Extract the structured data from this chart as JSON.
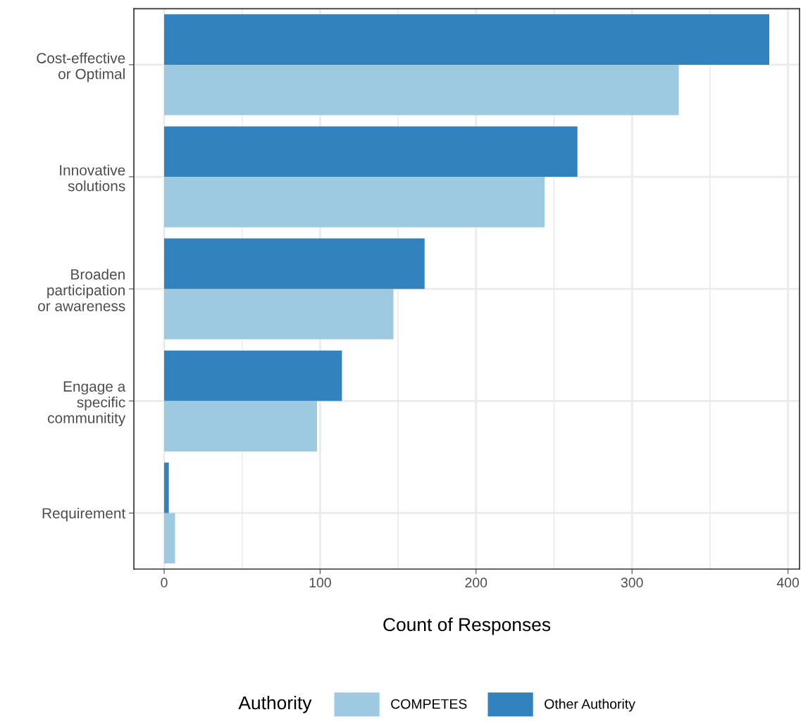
{
  "chart_data": {
    "type": "bar",
    "orientation": "horizontal",
    "xlabel": "Count of Responses",
    "legend_title": "Authority",
    "categories": [
      "Cost-effective\nor Optimal",
      "Innovative\nsolutions",
      "Broaden\nparticipation\nor awareness",
      "Engage a\nspecific\ncommunitity",
      "Requirement"
    ],
    "series": [
      {
        "name": "COMPETES",
        "color": "#9ecae1",
        "values": [
          330,
          244,
          147,
          98,
          7
        ]
      },
      {
        "name": "Other Authority",
        "color": "#3182bd",
        "values": [
          388,
          265,
          167,
          114,
          3
        ]
      }
    ],
    "xlim": [
      -19.4,
      407.4
    ],
    "xticks": [
      0,
      100,
      200,
      300,
      400
    ],
    "grid": true,
    "legend": "bottom"
  }
}
